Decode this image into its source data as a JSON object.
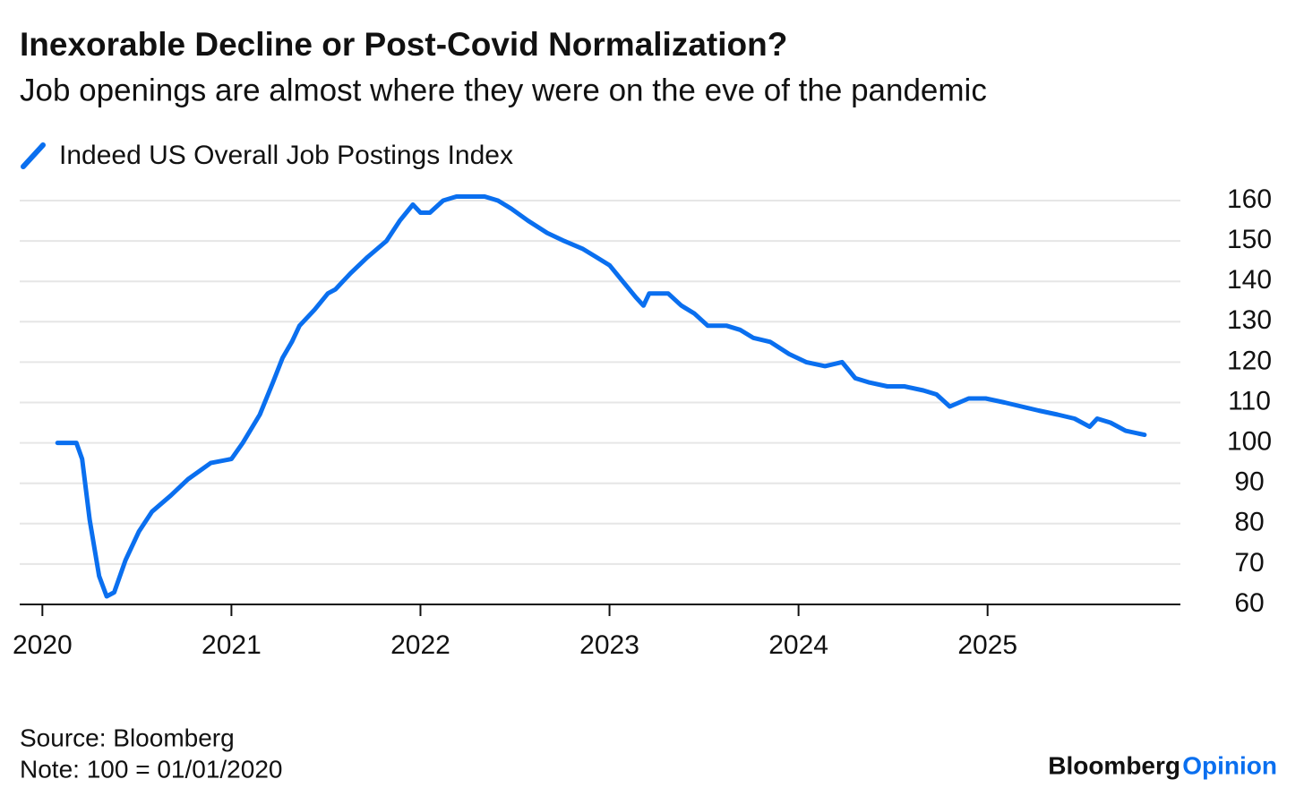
{
  "chart_data": {
    "type": "line",
    "title": "Inexorable Decline or Post-Covid Normalization?",
    "subtitle": "Job openings are almost where they were on the eve of the pandemic",
    "source": "Source: Bloomberg",
    "note": "Note: 100 = 01/01/2020",
    "brand": "Bloomberg",
    "brand_suffix": "Opinion",
    "grid": true,
    "xlim": [
      2019.88,
      2026.02
    ],
    "xticks": [
      2020,
      2021,
      2022,
      2023,
      2024,
      2025
    ],
    "ylim": [
      60,
      160
    ],
    "yticks": [
      60,
      70,
      80,
      90,
      100,
      110,
      120,
      130,
      140,
      150,
      160
    ],
    "x": [
      2020.08,
      2020.18,
      2020.21,
      2020.25,
      2020.3,
      2020.34,
      2020.38,
      2020.44,
      2020.51,
      2020.58,
      2020.68,
      2020.77,
      2020.89,
      2021.0,
      2021.06,
      2021.15,
      2021.22,
      2021.27,
      2021.32,
      2021.36,
      2021.44,
      2021.51,
      2021.55,
      2021.63,
      2021.72,
      2021.82,
      2021.89,
      2021.96,
      2022.0,
      2022.05,
      2022.12,
      2022.19,
      2022.27,
      2022.34,
      2022.41,
      2022.48,
      2022.57,
      2022.67,
      2022.76,
      2022.86,
      2022.93,
      2023.0,
      2023.07,
      2023.14,
      2023.18,
      2023.21,
      2023.31,
      2023.38,
      2023.45,
      2023.52,
      2023.62,
      2023.69,
      2023.76,
      2023.85,
      2023.95,
      2024.04,
      2024.14,
      2024.23,
      2024.3,
      2024.37,
      2024.47,
      2024.56,
      2024.66,
      2024.73,
      2024.8,
      2024.9,
      2024.99,
      2025.09,
      2025.18,
      2025.27,
      2025.37,
      2025.46,
      2025.54,
      2025.58,
      2025.65,
      2025.73,
      2025.83
    ],
    "series": [
      {
        "name": "Indeed US Overall Job Postings Index",
        "color": "#0a6fef",
        "values": [
          100,
          100,
          96,
          81,
          67,
          62,
          63,
          71,
          78,
          83,
          87,
          91,
          95,
          96,
          100,
          107,
          115,
          121,
          125,
          129,
          133,
          137,
          138,
          142,
          146,
          150,
          155,
          159,
          157,
          157,
          160,
          161,
          161,
          161,
          160,
          158,
          155,
          152,
          150,
          148,
          146,
          144,
          140,
          136,
          134,
          137,
          137,
          134,
          132,
          129,
          129,
          128,
          126,
          125,
          122,
          120,
          119,
          120,
          116,
          115,
          114,
          114,
          113,
          112,
          109,
          111,
          111,
          110,
          109,
          108,
          107,
          106,
          104,
          106,
          105,
          103,
          102
        ]
      }
    ]
  }
}
